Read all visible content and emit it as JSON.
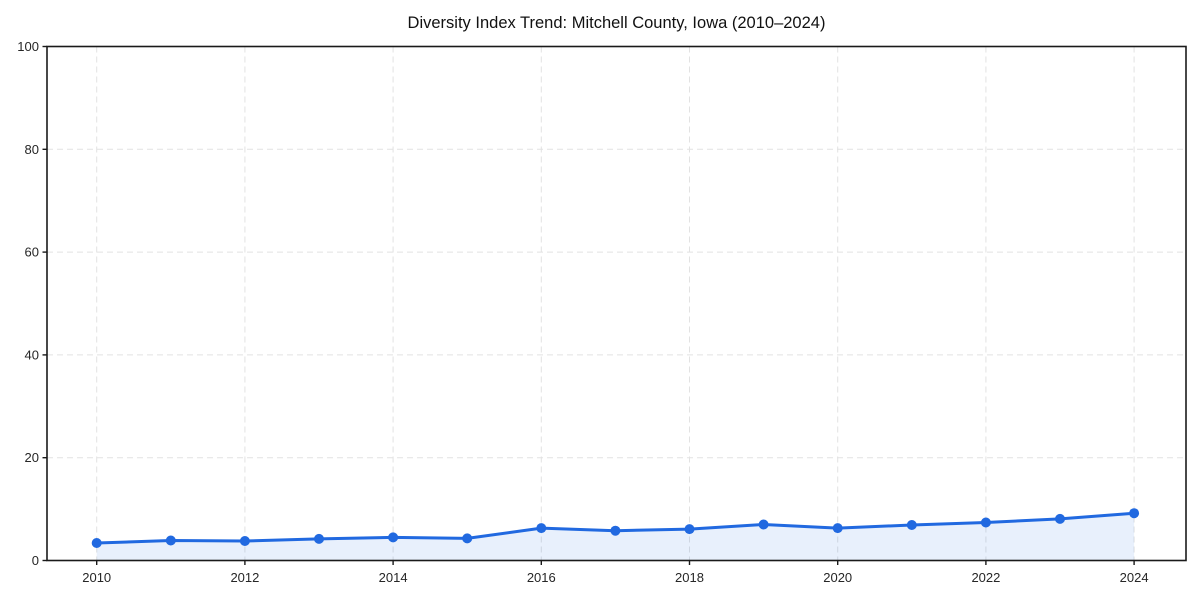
{
  "chart_data": {
    "type": "line",
    "title": "Diversity Index Trend: Mitchell County, Iowa (2010–2024)",
    "series_name": "Diversity Index",
    "x": [
      2010,
      2011,
      2012,
      2013,
      2014,
      2015,
      2016,
      2017,
      2018,
      2019,
      2020,
      2021,
      2022,
      2023,
      2024
    ],
    "values": [
      3.4,
      3.9,
      3.8,
      4.2,
      4.5,
      4.3,
      6.3,
      5.8,
      6.1,
      7.0,
      6.3,
      6.9,
      7.4,
      8.1,
      9.2
    ],
    "xlabel": "",
    "ylabel": "",
    "xlim": [
      2009.33,
      2024.7
    ],
    "ylim": [
      0,
      100
    ],
    "xticks": [
      2010,
      2012,
      2014,
      2016,
      2018,
      2020,
      2022,
      2024
    ],
    "yticks": [
      0,
      20,
      40,
      60,
      80,
      100
    ],
    "grid": "dashed-both-axes-at-ticks",
    "legend": "none",
    "marker": "circle",
    "area_fill": true,
    "colors": {
      "line": "#2169e0",
      "marker": "#2169e0",
      "fill": "rgba(33,105,224,0.10)",
      "grid": "#e2e2e2",
      "axis": "#1a1a1a",
      "tick_label": "#262626",
      "title": "#111111",
      "background": "#ffffff"
    }
  }
}
